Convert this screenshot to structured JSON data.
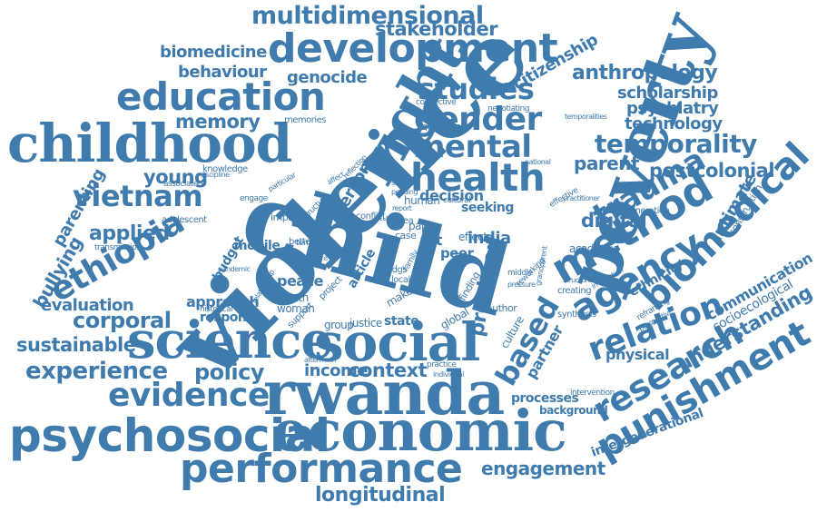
{
  "colors": {
    "word": "#3f7bad",
    "background": "#ffffff"
  },
  "words": [
    {
      "text": "multidimensional"
    },
    {
      "text": "stakeholder"
    },
    {
      "text": "biomedicine"
    },
    {
      "text": "development"
    },
    {
      "text": "behaviour"
    },
    {
      "text": "genocide"
    },
    {
      "text": "education"
    },
    {
      "text": "memory"
    },
    {
      "text": "memories"
    },
    {
      "text": "childhood"
    },
    {
      "text": "violence"
    },
    {
      "text": "right"
    },
    {
      "text": "studies"
    },
    {
      "text": "gender"
    },
    {
      "text": "mental"
    },
    {
      "text": "health"
    },
    {
      "text": "poverty"
    },
    {
      "text": "citizenship"
    },
    {
      "text": "anthropology"
    },
    {
      "text": "scholarship"
    },
    {
      "text": "psychiatry"
    },
    {
      "text": "technology"
    },
    {
      "text": "temporality"
    },
    {
      "text": "parent"
    },
    {
      "text": "postcolonial"
    },
    {
      "text": "trauma"
    },
    {
      "text": "method"
    },
    {
      "text": "biomedical"
    },
    {
      "text": "vietnam"
    },
    {
      "text": "young"
    },
    {
      "text": "applied"
    },
    {
      "text": "ethiopia"
    },
    {
      "text": "bullying"
    },
    {
      "text": "parenting"
    },
    {
      "text": "child"
    },
    {
      "text": "india"
    },
    {
      "text": "digital"
    },
    {
      "text": "agency"
    },
    {
      "text": "intimate"
    },
    {
      "text": "evaluation"
    },
    {
      "text": "corporal"
    },
    {
      "text": "approach"
    },
    {
      "text": "response"
    },
    {
      "text": "sustainable"
    },
    {
      "text": "science"
    },
    {
      "text": "social"
    },
    {
      "text": "based"
    },
    {
      "text": "relation"
    },
    {
      "text": "understanding"
    },
    {
      "text": "experience"
    },
    {
      "text": "policy"
    },
    {
      "text": "income"
    },
    {
      "text": "context"
    },
    {
      "text": "research"
    },
    {
      "text": "physical"
    },
    {
      "text": "evidence"
    },
    {
      "text": "rwanda"
    },
    {
      "text": "punishment"
    },
    {
      "text": "psychosocial"
    },
    {
      "text": "economic"
    },
    {
      "text": "processes"
    },
    {
      "text": "background"
    },
    {
      "text": "intergenerational"
    },
    {
      "text": "performance"
    },
    {
      "text": "engagement"
    },
    {
      "text": "longitudinal"
    },
    {
      "text": "knowledge"
    },
    {
      "text": "associated"
    },
    {
      "text": "adolescent"
    },
    {
      "text": "transmission"
    },
    {
      "text": "budget"
    },
    {
      "text": "mobile"
    },
    {
      "text": "impact"
    },
    {
      "text": "peace"
    },
    {
      "text": "youth"
    },
    {
      "text": "woman"
    },
    {
      "text": "historical"
    },
    {
      "text": "person"
    },
    {
      "text": "decision"
    },
    {
      "text": "seeking"
    },
    {
      "text": "paper"
    },
    {
      "text": "art"
    },
    {
      "text": "peer"
    },
    {
      "text": "effect"
    },
    {
      "text": "human"
    },
    {
      "text": "provision"
    },
    {
      "text": "group"
    },
    {
      "text": "justice"
    },
    {
      "text": "state"
    },
    {
      "text": "global"
    },
    {
      "text": "author"
    },
    {
      "text": "culture"
    },
    {
      "text": "partner"
    },
    {
      "text": "academic"
    },
    {
      "text": "creating"
    },
    {
      "text": "synthesis"
    },
    {
      "text": "ethnicity"
    },
    {
      "text": "communication"
    },
    {
      "text": "socioecological"
    },
    {
      "text": "construction"
    },
    {
      "text": "generation"
    },
    {
      "text": "effective"
    },
    {
      "text": "negotiating"
    },
    {
      "text": "connective"
    },
    {
      "text": "qualitative"
    },
    {
      "text": "temporalities"
    },
    {
      "text": "national"
    },
    {
      "text": "practitioner"
    },
    {
      "text": "sdgs"
    },
    {
      "text": "article"
    },
    {
      "text": "school"
    },
    {
      "text": "finding"
    },
    {
      "text": "practice"
    },
    {
      "text": "individual"
    },
    {
      "text": "intervention"
    },
    {
      "text": "reframing"
    },
    {
      "text": "perspective"
    },
    {
      "text": "structural"
    },
    {
      "text": "implication"
    },
    {
      "text": "discipline"
    },
    {
      "text": "pandemic"
    },
    {
      "text": "relationship"
    },
    {
      "text": "aftermath"
    },
    {
      "text": "support"
    },
    {
      "text": "term"
    },
    {
      "text": "engage"
    },
    {
      "text": "affect"
    },
    {
      "text": "structure"
    },
    {
      "text": "particular"
    },
    {
      "text": "reflection"
    },
    {
      "text": "conflict"
    },
    {
      "text": "case"
    },
    {
      "text": "area"
    },
    {
      "text": "study"
    },
    {
      "text": "better"
    },
    {
      "text": "ending"
    },
    {
      "text": "local"
    },
    {
      "text": "project"
    },
    {
      "text": "maker"
    },
    {
      "text": "cultural"
    },
    {
      "text": "report"
    },
    {
      "text": "reworking"
    },
    {
      "text": "middle"
    },
    {
      "text": "pressure"
    },
    {
      "text": "grandparent"
    },
    {
      "text": "family"
    },
    {
      "text": "service"
    },
    {
      "text": "pending"
    }
  ]
}
